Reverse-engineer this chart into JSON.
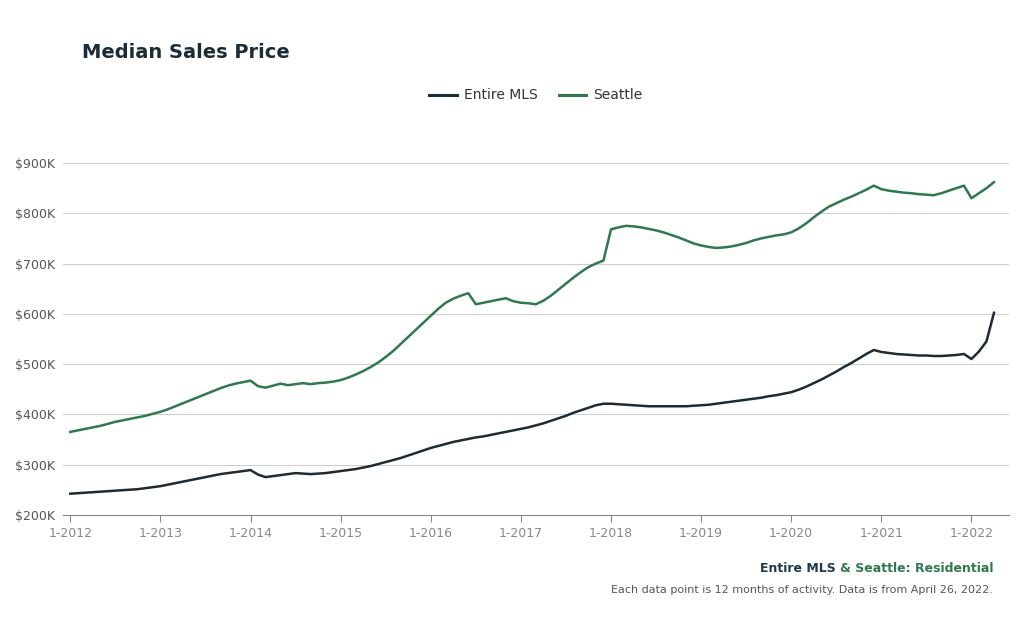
{
  "title": "Median Sales Price",
  "background_color": "#ffffff",
  "plot_bg_color": "#ffffff",
  "seattle_color": "#2d7a4f",
  "mls_color": "#1c2b36",
  "legend_mls_label": "Entire MLS",
  "legend_seattle_label": "Seattle",
  "footer_mls_text": "Entire MLS",
  "footer_seattle_text": "& Seattle: Residential",
  "footer_line2": "Each data point is 12 months of activity. Data is from April 26, 2022.",
  "footer_mls_color": "#1c3a4a",
  "footer_seattle_color": "#2d7a4f",
  "ylim": [
    200000,
    940000
  ],
  "yticks": [
    200000,
    300000,
    400000,
    500000,
    600000,
    700000,
    800000,
    900000
  ],
  "x_tick_labels": [
    "1-2012",
    "1-2013",
    "1-2014",
    "1-2015",
    "1-2016",
    "1-2017",
    "1-2018",
    "1-2019",
    "1-2020",
    "1-2021",
    "1-2022"
  ],
  "seattle_data": [
    365000,
    368000,
    371000,
    374000,
    377000,
    381000,
    385000,
    388000,
    391000,
    394000,
    397000,
    401000,
    405000,
    410000,
    416000,
    422000,
    428000,
    434000,
    440000,
    446000,
    452000,
    457000,
    461000,
    464000,
    467000,
    456000,
    453000,
    457000,
    461000,
    458000,
    460000,
    462000,
    460000,
    462000,
    463000,
    465000,
    468000,
    473000,
    479000,
    486000,
    494000,
    503000,
    514000,
    526000,
    540000,
    554000,
    568000,
    582000,
    596000,
    610000,
    622000,
    630000,
    636000,
    641000,
    619000,
    622000,
    625000,
    628000,
    631000,
    625000,
    622000,
    621000,
    619000,
    626000,
    636000,
    648000,
    660000,
    672000,
    683000,
    693000,
    700000,
    706000,
    768000,
    772000,
    775000,
    774000,
    772000,
    769000,
    766000,
    762000,
    757000,
    752000,
    746000,
    740000,
    736000,
    733000,
    731000,
    732000,
    734000,
    737000,
    741000,
    746000,
    750000,
    753000,
    756000,
    758000,
    762000,
    770000,
    780000,
    792000,
    803000,
    813000,
    820000,
    827000,
    833000,
    840000,
    847000,
    855000,
    848000,
    845000,
    843000,
    841000,
    840000,
    838000,
    837000,
    836000,
    840000,
    845000,
    850000,
    855000,
    830000,
    840000,
    850000,
    862000
  ],
  "mls_data": [
    242000,
    243000,
    244000,
    245000,
    246000,
    247000,
    248000,
    249000,
    250000,
    251000,
    253000,
    255000,
    257000,
    260000,
    263000,
    266000,
    269000,
    272000,
    275000,
    278000,
    281000,
    283000,
    285000,
    287000,
    289000,
    280000,
    275000,
    277000,
    279000,
    281000,
    283000,
    282000,
    281000,
    282000,
    283000,
    285000,
    287000,
    289000,
    291000,
    294000,
    297000,
    301000,
    305000,
    309000,
    313000,
    318000,
    323000,
    328000,
    333000,
    337000,
    341000,
    345000,
    348000,
    351000,
    354000,
    356000,
    359000,
    362000,
    365000,
    368000,
    371000,
    374000,
    378000,
    382000,
    387000,
    392000,
    397000,
    403000,
    408000,
    413000,
    418000,
    421000,
    421000,
    420000,
    419000,
    418000,
    417000,
    416000,
    416000,
    416000,
    416000,
    416000,
    416000,
    417000,
    418000,
    419000,
    421000,
    423000,
    425000,
    427000,
    429000,
    431000,
    433000,
    436000,
    438000,
    441000,
    444000,
    449000,
    455000,
    462000,
    469000,
    477000,
    485000,
    494000,
    502000,
    511000,
    520000,
    528000,
    524000,
    522000,
    520000,
    519000,
    518000,
    517000,
    517000,
    516000,
    516000,
    517000,
    518000,
    520000,
    510000,
    525000,
    545000,
    602000
  ]
}
